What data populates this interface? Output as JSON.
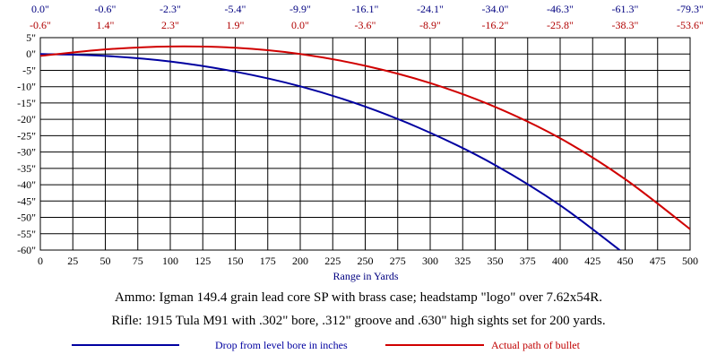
{
  "chart_data": {
    "type": "line",
    "xlabel": "Range in Yards",
    "ylabel": "",
    "xlim": [
      0,
      500
    ],
    "ylim": [
      -60,
      5
    ],
    "x_ticks": [
      0,
      25,
      50,
      75,
      100,
      125,
      150,
      175,
      200,
      225,
      250,
      275,
      300,
      325,
      350,
      375,
      400,
      425,
      450,
      475,
      500
    ],
    "x_tick_labels": [
      "0",
      "25",
      "50",
      "75",
      "100",
      "125",
      "150",
      "175",
      "200",
      "225",
      "250",
      "275",
      "300",
      "325",
      "350",
      "375",
      "400",
      "425",
      "450",
      "475",
      "500"
    ],
    "y_ticks": [
      5,
      0,
      -5,
      -10,
      -15,
      -20,
      -25,
      -30,
      -35,
      -40,
      -45,
      -50,
      -55,
      -60
    ],
    "y_tick_labels": [
      "5\"",
      "0\"",
      "-5\"",
      "-10\"",
      "-15\"",
      "-20\"",
      "-25\"",
      "-30\"",
      "-35\"",
      "-40\"",
      "-45\"",
      "-50\"",
      "-55\"",
      "-60\""
    ],
    "grid": true,
    "top_labels_x": [
      0,
      50,
      100,
      150,
      200,
      250,
      300,
      350,
      400,
      450,
      500
    ],
    "top_labels_row1": [
      "0.0\"",
      "-0.6\"",
      "-2.3\"",
      "-5.4\"",
      "-9.9\"",
      "-16.1\"",
      "-24.1\"",
      "-34.0\"",
      "-46.3\"",
      "-61.3\"",
      "-79.3\""
    ],
    "top_labels_row2": [
      "-0.6\"",
      "1.4\"",
      "2.3\"",
      "1.9\"",
      "0.0\"",
      "-3.6\"",
      "-8.9\"",
      "-16.2\"",
      "-25.8\"",
      "-38.3\"",
      "-53.6\""
    ],
    "series": [
      {
        "name": "Drop from level bore in inches",
        "color": "#0000a0",
        "x": [
          0,
          50,
          100,
          150,
          200,
          250,
          300,
          350,
          400,
          450
        ],
        "values": [
          0.0,
          -0.6,
          -2.3,
          -5.4,
          -9.9,
          -16.1,
          -24.1,
          -34.0,
          -46.3,
          -61.3
        ]
      },
      {
        "name": "Actual path of bullet",
        "color": "#d00000",
        "x": [
          0,
          50,
          100,
          150,
          200,
          250,
          300,
          350,
          400,
          450,
          500
        ],
        "values": [
          -0.6,
          1.4,
          2.3,
          1.9,
          0.0,
          -3.6,
          -8.9,
          -16.2,
          -25.8,
          -38.3,
          -53.6
        ]
      }
    ],
    "legend_position": "bottom"
  },
  "captions": {
    "ammo": "Ammo:  Igman 149.4 grain lead core SP with brass case; headstamp \"logo\" over 7.62x54R.",
    "rifle": "Rifle:  1915 Tula M91 with .302\" bore, .312\" groove and .630\" high sights set for 200 yards."
  },
  "colors": {
    "row1": "#000080",
    "row2": "#b00000",
    "axis_label": "#000080"
  }
}
